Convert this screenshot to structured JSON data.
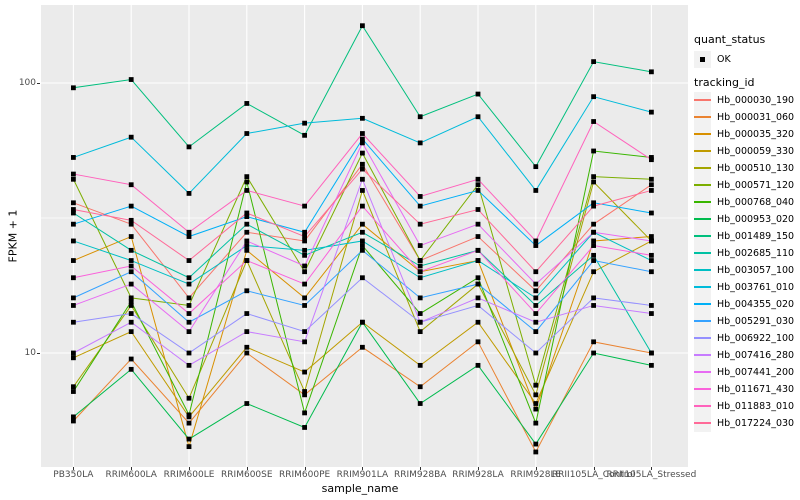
{
  "chart_data": {
    "type": "line",
    "scale_y": "log10",
    "xlabel": "sample_name",
    "ylabel": "FPKM + 1",
    "x_categories": [
      "PB350LA",
      "RRIM600LA",
      "RRIM600LE",
      "RRIM600SE",
      "RRIM600PE",
      "RRIM901LA",
      "RRIM928BA",
      "RRIM928LA",
      "RRIM928LE",
      "RRII105LA_Control",
      "RRII105LA_Stressed"
    ],
    "y_tick_labels": [
      "100",
      "10"
    ],
    "y_tick_values": [
      100,
      10
    ],
    "y_minor_values": [
      31.62
    ],
    "ylim_displayed": [
      3.9,
      194
    ],
    "grid": true,
    "legend_position": "right",
    "panel_bg": "#EBEBEB",
    "grid_color": "#FFFFFF",
    "point_color": "#000000",
    "tick_label_color": "#4D4D4D",
    "series": [
      {
        "tracking_id": "Hb_000030_190",
        "color": "#F8766D",
        "values": [
          36,
          30,
          16,
          28,
          26,
          50,
          22,
          27,
          17,
          30,
          42
        ]
      },
      {
        "tracking_id": "Hb_000031_060",
        "color": "#EA8331",
        "values": [
          5.6,
          9.5,
          5.5,
          10,
          7,
          10.5,
          7.5,
          11,
          4.3,
          11,
          10
        ]
      },
      {
        "tracking_id": "Hb_000035_320",
        "color": "#D89000",
        "values": [
          22,
          27,
          4.5,
          24,
          16,
          30,
          20,
          22,
          6.2,
          26,
          27
        ]
      },
      {
        "tracking_id": "Hb_000059_330",
        "color": "#C09B00",
        "values": [
          9.6,
          12,
          5.8,
          10.5,
          8.5,
          13,
          9,
          13,
          6.5,
          20,
          26
        ]
      },
      {
        "tracking_id": "Hb_000510_130",
        "color": "#A3A500",
        "values": [
          7.5,
          15,
          6.8,
          22,
          7.2,
          40,
          12,
          18,
          7,
          43,
          26
        ]
      },
      {
        "tracking_id": "Hb_000571_120",
        "color": "#7CAE00",
        "values": [
          44,
          16,
          15,
          45,
          20,
          55,
          22,
          42,
          7.6,
          45,
          44
        ]
      },
      {
        "tracking_id": "Hb_000768_040",
        "color": "#39B600",
        "values": [
          7.2,
          15.5,
          5.9,
          43,
          6,
          25,
          14,
          19,
          5.5,
          56,
          53
        ]
      },
      {
        "tracking_id": "Hb_000953_020",
        "color": "#00BB4E",
        "values": [
          5.8,
          8.7,
          4.8,
          6.5,
          5.3,
          13,
          6.5,
          9,
          4.6,
          10,
          9
        ]
      },
      {
        "tracking_id": "Hb_001489_150",
        "color": "#00BF7D",
        "values": [
          96,
          103,
          58,
          84,
          64,
          163,
          75,
          91,
          49,
          120,
          110
        ]
      },
      {
        "tracking_id": "Hb_002685_110",
        "color": "#00C1A3",
        "values": [
          33,
          24,
          19,
          30,
          23,
          28,
          21,
          24,
          15,
          23,
          10
        ]
      },
      {
        "tracking_id": "Hb_003057_100",
        "color": "#00BFC4",
        "values": [
          26,
          22,
          18,
          25,
          24,
          26,
          19,
          22,
          16,
          28,
          22
        ]
      },
      {
        "tracking_id": "Hb_003761_010",
        "color": "#00BBDA",
        "values": [
          53,
          63,
          39,
          65,
          71,
          74,
          60,
          75,
          40,
          89,
          78
        ]
      },
      {
        "tracking_id": "Hb_004355_020",
        "color": "#00B0F6",
        "values": [
          30,
          35,
          27,
          32,
          28,
          62,
          35,
          40,
          25,
          36,
          33
        ]
      },
      {
        "tracking_id": "Hb_005291_030",
        "color": "#35A2FF",
        "values": [
          16,
          20,
          13,
          17,
          15,
          24,
          16,
          18,
          12,
          22,
          20
        ]
      },
      {
        "tracking_id": "Hb_006922_100",
        "color": "#9590FF",
        "values": [
          13,
          14,
          10,
          14,
          12,
          19,
          13,
          15,
          10,
          16,
          15
        ]
      },
      {
        "tracking_id": "Hb_007416_280",
        "color": "#C77CFF",
        "values": [
          10,
          13,
          9,
          12,
          11,
          44,
          13,
          16,
          13,
          15,
          14
        ]
      },
      {
        "tracking_id": "Hb_007441_200",
        "color": "#E76BF3",
        "values": [
          15,
          18,
          12,
          26,
          21,
          60,
          25,
          30,
          18,
          28,
          26
        ]
      },
      {
        "tracking_id": "Hb_011671_430",
        "color": "#FA62DB",
        "values": [
          19,
          21,
          14,
          22,
          18,
          35,
          20,
          24,
          14,
          25,
          23
        ]
      },
      {
        "tracking_id": "Hb_011883_010",
        "color": "#FF62BC",
        "values": [
          46,
          42,
          28,
          40,
          35,
          65,
          38,
          44,
          26,
          72,
          52
        ]
      },
      {
        "tracking_id": "Hb_017224_030",
        "color": "#FF6A98",
        "values": [
          34,
          31,
          22,
          33,
          27,
          48,
          30,
          34,
          20,
          35,
          40
        ]
      }
    ]
  },
  "legend": {
    "quant_status_title": "quant_status",
    "quant_status_items": [
      {
        "label": "OK",
        "marker": "black-point"
      }
    ],
    "tracking_title": "tracking_id"
  }
}
